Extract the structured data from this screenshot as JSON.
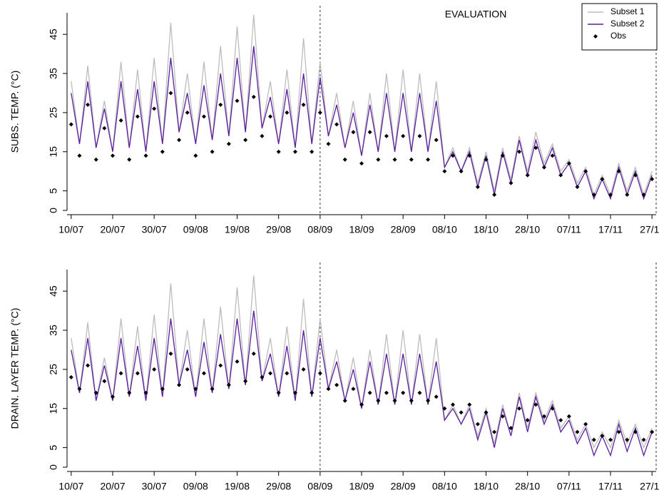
{
  "chart_data": [
    {
      "type": "line",
      "ylabel": "SUBS. TEMP. (°C)",
      "annotation": "EVALUATION",
      "legend": "topright",
      "x": [
        0,
        2,
        4,
        6,
        8,
        10,
        12,
        14,
        16,
        18,
        20,
        22,
        24,
        26,
        28,
        30,
        32,
        34,
        36,
        38,
        40,
        42,
        44,
        46,
        48,
        50,
        52,
        54,
        56,
        58,
        60,
        62,
        64,
        66,
        68,
        70,
        72,
        74,
        76,
        78,
        80,
        82,
        84,
        86,
        88,
        90,
        92,
        94,
        96,
        98,
        100,
        102,
        104,
        106,
        108,
        110,
        112,
        114,
        116,
        118,
        120,
        122,
        124,
        126,
        128,
        130,
        132,
        134,
        136,
        138,
        140
      ],
      "xlim": [
        -1,
        141
      ],
      "xticks": [
        {
          "value": 0,
          "label": "10/07"
        },
        {
          "value": 10,
          "label": "20/07"
        },
        {
          "value": 20,
          "label": "30/07"
        },
        {
          "value": 30,
          "label": "09/08"
        },
        {
          "value": 40,
          "label": "19/08"
        },
        {
          "value": 50,
          "label": "29/08"
        },
        {
          "value": 60,
          "label": "08/09"
        },
        {
          "value": 70,
          "label": "18/09"
        },
        {
          "value": 80,
          "label": "28/09"
        },
        {
          "value": 90,
          "label": "08/10"
        },
        {
          "value": 100,
          "label": "18/10"
        },
        {
          "value": 110,
          "label": "28/10"
        },
        {
          "value": 120,
          "label": "07/11"
        },
        {
          "value": 130,
          "label": "17/11"
        },
        {
          "value": 140,
          "label": "27/11"
        }
      ],
      "ylim": [
        0,
        50.5
      ],
      "yticks": [
        0,
        5,
        15,
        25,
        35,
        45
      ],
      "vlines": [
        60,
        141
      ],
      "series": [
        {
          "name": "Subset 1",
          "color": "#bdbdbd",
          "style": "line",
          "values": [
            33,
            17,
            37,
            16,
            28,
            15,
            38,
            16,
            36,
            15,
            39,
            17,
            48,
            20,
            35,
            17,
            38,
            18,
            42,
            19,
            47,
            20,
            50,
            21,
            33,
            17,
            36,
            16,
            44,
            17,
            38,
            19,
            30,
            16,
            28,
            14,
            30,
            15,
            35,
            15,
            36,
            15,
            35,
            15,
            33,
            11,
            16,
            10,
            16,
            7,
            15,
            5,
            16,
            8,
            19,
            10,
            20,
            12,
            17,
            10,
            13,
            7,
            11,
            4,
            9,
            4,
            12,
            5,
            11,
            4,
            10
          ]
        },
        {
          "name": "Subset 2",
          "color": "#5a1e9c",
          "style": "line",
          "values": [
            30,
            17,
            33,
            16,
            26,
            15,
            33,
            16,
            31,
            15,
            33,
            17,
            39,
            20,
            30,
            17,
            32,
            18,
            35,
            19,
            39,
            20,
            42,
            21,
            29,
            17,
            31,
            16,
            35,
            17,
            34,
            19,
            27,
            16,
            25,
            14,
            27,
            15,
            30,
            15,
            30,
            15,
            30,
            15,
            28,
            11,
            15,
            10,
            15,
            6,
            14,
            4,
            15,
            7,
            18,
            9,
            18,
            11,
            16,
            9,
            12,
            6,
            10,
            3,
            8,
            3,
            11,
            4,
            10,
            3,
            9
          ]
        },
        {
          "name": "Obs",
          "color": "#000000",
          "style": "points",
          "values": [
            22,
            14,
            27,
            13,
            21,
            14,
            23,
            13,
            24,
            14,
            26,
            15,
            30,
            18,
            25,
            14,
            24,
            15,
            27,
            17,
            28,
            18,
            29,
            19,
            24,
            15,
            25,
            15,
            27,
            15,
            25,
            17,
            22,
            13,
            20,
            12,
            20,
            13,
            19,
            13,
            19,
            13,
            19,
            13,
            18,
            10,
            14,
            10,
            14,
            6,
            13,
            4,
            14,
            7,
            15,
            9,
            16,
            11,
            14,
            9,
            12,
            6,
            10,
            4,
            8,
            4,
            10,
            4,
            9,
            4,
            8
          ]
        }
      ]
    },
    {
      "type": "line",
      "ylabel": "DRAIN. LAYER TEMP. (°C)",
      "x": [
        0,
        2,
        4,
        6,
        8,
        10,
        12,
        14,
        16,
        18,
        20,
        22,
        24,
        26,
        28,
        30,
        32,
        34,
        36,
        38,
        40,
        42,
        44,
        46,
        48,
        50,
        52,
        54,
        56,
        58,
        60,
        62,
        64,
        66,
        68,
        70,
        72,
        74,
        76,
        78,
        80,
        82,
        84,
        86,
        88,
        90,
        92,
        94,
        96,
        98,
        100,
        102,
        104,
        106,
        108,
        110,
        112,
        114,
        116,
        118,
        120,
        122,
        124,
        126,
        128,
        130,
        132,
        134,
        136,
        138,
        140
      ],
      "xlim": [
        -1,
        141
      ],
      "xticks": [
        {
          "value": 0,
          "label": "10/07"
        },
        {
          "value": 10,
          "label": "20/07"
        },
        {
          "value": 20,
          "label": "30/07"
        },
        {
          "value": 30,
          "label": "09/08"
        },
        {
          "value": 40,
          "label": "19/08"
        },
        {
          "value": 50,
          "label": "29/08"
        },
        {
          "value": 60,
          "label": "08/09"
        },
        {
          "value": 70,
          "label": "18/09"
        },
        {
          "value": 80,
          "label": "28/09"
        },
        {
          "value": 90,
          "label": "08/10"
        },
        {
          "value": 100,
          "label": "18/10"
        },
        {
          "value": 110,
          "label": "28/10"
        },
        {
          "value": 120,
          "label": "07/11"
        },
        {
          "value": 130,
          "label": "17/11"
        },
        {
          "value": 140,
          "label": "27/11"
        }
      ],
      "ylim": [
        0,
        50.5
      ],
      "yticks": [
        0,
        5,
        15,
        25,
        35,
        45
      ],
      "vlines": [
        60,
        141
      ],
      "series": [
        {
          "color": "#bdbdbd",
          "style": "line",
          "values": [
            33,
            19,
            37,
            17,
            28,
            17,
            38,
            18,
            36,
            17,
            39,
            18,
            47,
            21,
            35,
            18,
            38,
            19,
            41,
            20,
            46,
            21,
            49,
            22,
            33,
            18,
            36,
            17,
            43,
            18,
            38,
            20,
            30,
            17,
            28,
            15,
            30,
            16,
            34,
            16,
            35,
            16,
            34,
            16,
            33,
            12,
            16,
            11,
            16,
            8,
            15,
            6,
            16,
            8,
            19,
            10,
            19,
            12,
            17,
            10,
            13,
            7,
            11,
            5,
            9,
            5,
            12,
            6,
            11,
            5,
            10
          ]
        },
        {
          "color": "#5a1e9c",
          "style": "line",
          "values": [
            30,
            19,
            33,
            17,
            26,
            17,
            33,
            18,
            31,
            17,
            33,
            18,
            38,
            21,
            30,
            18,
            32,
            19,
            34,
            20,
            38,
            21,
            40,
            22,
            29,
            18,
            31,
            17,
            35,
            18,
            33,
            20,
            27,
            17,
            25,
            15,
            27,
            16,
            29,
            16,
            29,
            16,
            29,
            16,
            27,
            12,
            15,
            11,
            15,
            7,
            14,
            5,
            15,
            8,
            18,
            9,
            18,
            11,
            16,
            9,
            12,
            6,
            10,
            3,
            8,
            3,
            11,
            4,
            10,
            3,
            9
          ]
        },
        {
          "color": "#000000",
          "style": "points",
          "values": [
            23,
            20,
            26,
            19,
            22,
            18,
            24,
            19,
            24,
            19,
            25,
            20,
            29,
            21,
            25,
            20,
            24,
            20,
            26,
            21,
            27,
            22,
            29,
            23,
            24,
            19,
            24,
            19,
            25,
            19,
            24,
            20,
            21,
            17,
            20,
            16,
            19,
            17,
            19,
            17,
            19,
            17,
            19,
            17,
            18,
            15,
            16,
            14,
            16,
            11,
            14,
            9,
            13,
            10,
            15,
            12,
            16,
            13,
            15,
            12,
            13,
            9,
            11,
            7,
            8,
            7,
            9,
            7,
            9,
            7,
            9
          ]
        }
      ]
    }
  ]
}
